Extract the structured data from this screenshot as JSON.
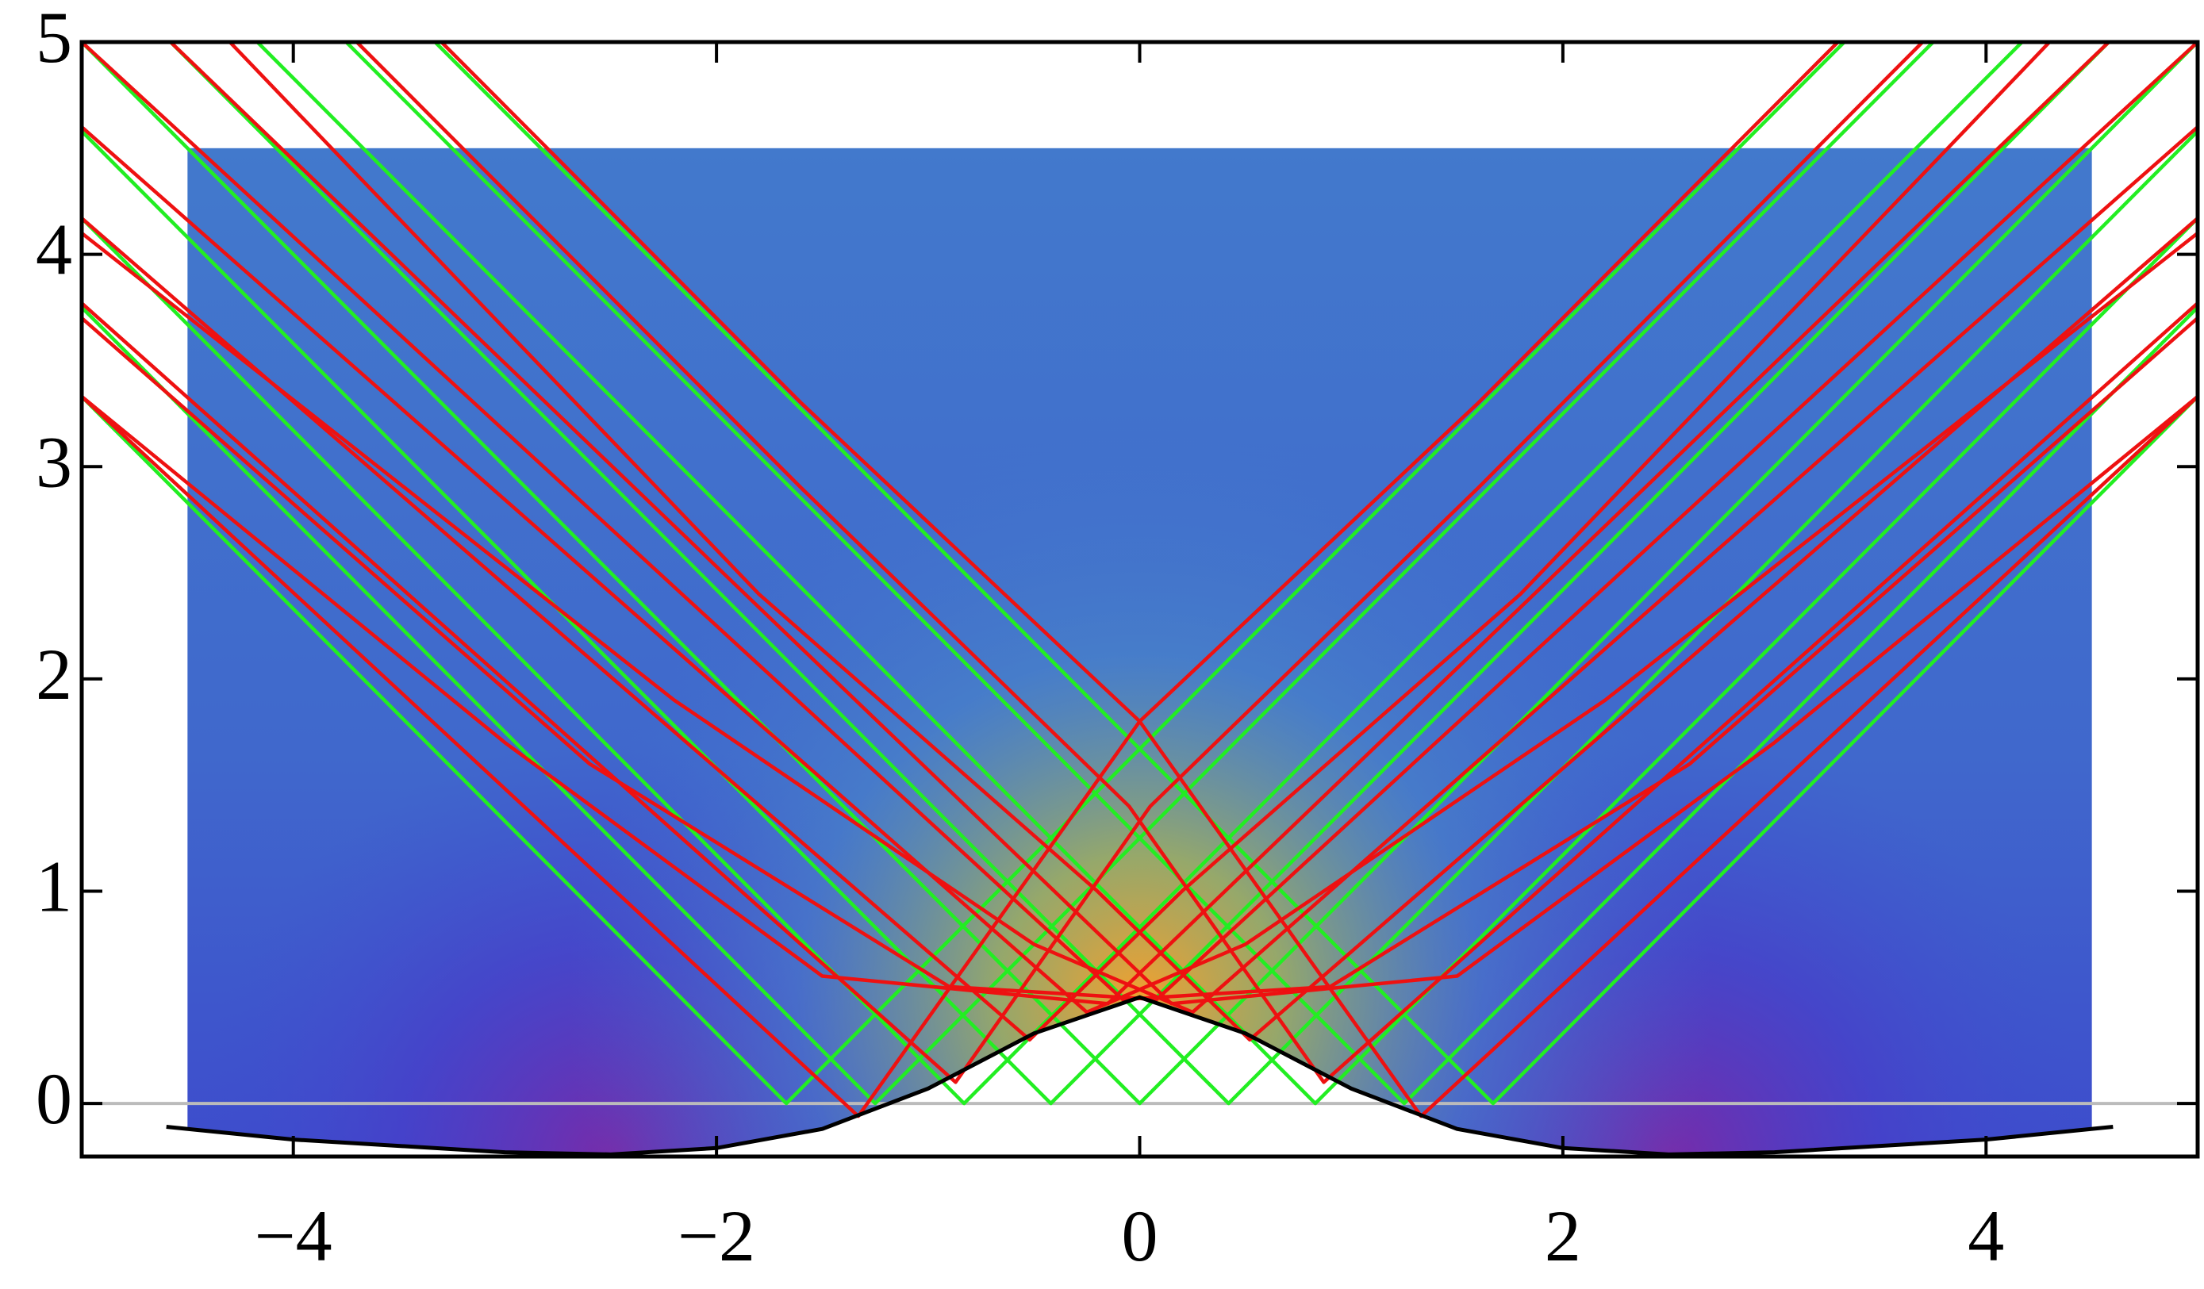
{
  "chart_data": {
    "type": "rays",
    "xlim": [
      -5,
      5
    ],
    "ylim": [
      -0.25,
      5
    ],
    "xticks": [
      {
        "value": -4,
        "label": "−4"
      },
      {
        "value": -2,
        "label": "−2"
      },
      0,
      2,
      4
    ],
    "yticks": [
      0,
      1,
      2,
      3,
      4,
      5
    ],
    "heatmap": {
      "xlim": [
        -4.5,
        4.5
      ],
      "ylim": [
        -0.25,
        4.5
      ],
      "color": "#4279cc",
      "peak_color": "#f0a030",
      "trough_color": "#7a2aa8"
    },
    "zero_line_color": "#bbbbbb",
    "surface": {
      "color": "#000000",
      "x": [
        -4.6,
        -4,
        -3,
        -2.5,
        -2,
        -1.5,
        -1,
        -0.5,
        0,
        0.5,
        1,
        1.5,
        2,
        2.5,
        3,
        4,
        4.6
      ],
      "y": [
        -0.11,
        -0.17,
        -0.23,
        -0.24,
        -0.21,
        -0.12,
        0.07,
        0.33,
        0.5,
        0.33,
        0.07,
        -0.12,
        -0.21,
        -0.24,
        -0.23,
        -0.17,
        -0.11
      ]
    },
    "green_rays": [
      {
        "color": "#22ee22",
        "x": [
          -6.67,
          -1.67,
          3.33
        ],
        "y": [
          5,
          0,
          5
        ]
      },
      {
        "color": "#22ee22",
        "x": [
          -6.25,
          -1.25,
          3.75
        ],
        "y": [
          5,
          0,
          5
        ]
      },
      {
        "color": "#22ee22",
        "x": [
          -5.83,
          -0.83,
          4.17
        ],
        "y": [
          5,
          0,
          5
        ]
      },
      {
        "color": "#22ee22",
        "x": [
          -5.42,
          -0.42,
          4.58
        ],
        "y": [
          5,
          0,
          5
        ]
      },
      {
        "color": "#22ee22",
        "x": [
          -5,
          0,
          5
        ],
        "y": [
          5,
          0,
          5
        ]
      },
      {
        "color": "#22ee22",
        "x": [
          -4.58,
          0.42,
          5.42
        ],
        "y": [
          5,
          0,
          5
        ]
      },
      {
        "color": "#22ee22",
        "x": [
          -4.17,
          0.83,
          5.83
        ],
        "y": [
          5,
          0,
          5
        ]
      },
      {
        "color": "#22ee22",
        "x": [
          -3.75,
          1.25,
          6.25
        ],
        "y": [
          5,
          0,
          5
        ]
      },
      {
        "color": "#22ee22",
        "x": [
          -3.33,
          1.67,
          6.67
        ],
        "y": [
          5,
          0,
          5
        ]
      }
    ],
    "red_rays": [
      {
        "color": "#ee1111",
        "x": [
          -5,
          -1.33,
          0,
          1.6,
          3.3
        ],
        "y": [
          3.33,
          -0.06,
          1.8,
          3.3,
          5
        ]
      },
      {
        "color": "#ee1111",
        "x": [
          -5,
          -0.87,
          0.05,
          1.6,
          3.7
        ],
        "y": [
          3.77,
          0.1,
          1.4,
          2.9,
          5
        ]
      },
      {
        "color": "#ee1111",
        "x": [
          -5,
          -0.52,
          0.2,
          1.8,
          4.3
        ],
        "y": [
          4.17,
          0.3,
          1.0,
          2.4,
          5
        ]
      },
      {
        "color": "#ee1111",
        "x": [
          -5,
          -0.25,
          0.5,
          2.2,
          5
        ],
        "y": [
          4.6,
          0.43,
          0.75,
          1.9,
          4.1
        ]
      },
      {
        "color": "#ee1111",
        "x": [
          -5,
          -0.08,
          0.9,
          2.6,
          5
        ],
        "y": [
          5,
          0.49,
          0.55,
          1.6,
          3.7
        ]
      },
      {
        "color": "#ee1111",
        "x": [
          -4.58,
          0.15,
          1.5,
          3,
          5
        ],
        "y": [
          5,
          0.47,
          0.6,
          1.7,
          3.33
        ]
      },
      {
        "color": "#ee1111",
        "x": [
          5,
          1.33,
          0,
          -1.6,
          -3.3
        ],
        "y": [
          3.33,
          -0.06,
          1.8,
          3.3,
          5
        ]
      },
      {
        "color": "#ee1111",
        "x": [
          5,
          0.87,
          -0.05,
          -1.6,
          -3.7
        ],
        "y": [
          3.77,
          0.1,
          1.4,
          2.9,
          5
        ]
      },
      {
        "color": "#ee1111",
        "x": [
          5,
          0.52,
          -0.2,
          -1.8,
          -4.3
        ],
        "y": [
          4.17,
          0.3,
          1.0,
          2.4,
          5
        ]
      },
      {
        "color": "#ee1111",
        "x": [
          5,
          0.25,
          -0.5,
          -2.2,
          -5
        ],
        "y": [
          4.6,
          0.43,
          0.75,
          1.9,
          4.1
        ]
      },
      {
        "color": "#ee1111",
        "x": [
          5,
          0.08,
          -0.9,
          -2.6,
          -5
        ],
        "y": [
          5,
          0.49,
          0.55,
          1.6,
          3.7
        ]
      },
      {
        "color": "#ee1111",
        "x": [
          4.58,
          -0.15,
          -1.5,
          -3,
          -5
        ],
        "y": [
          5,
          0.47,
          0.6,
          1.7,
          3.33
        ]
      }
    ]
  }
}
